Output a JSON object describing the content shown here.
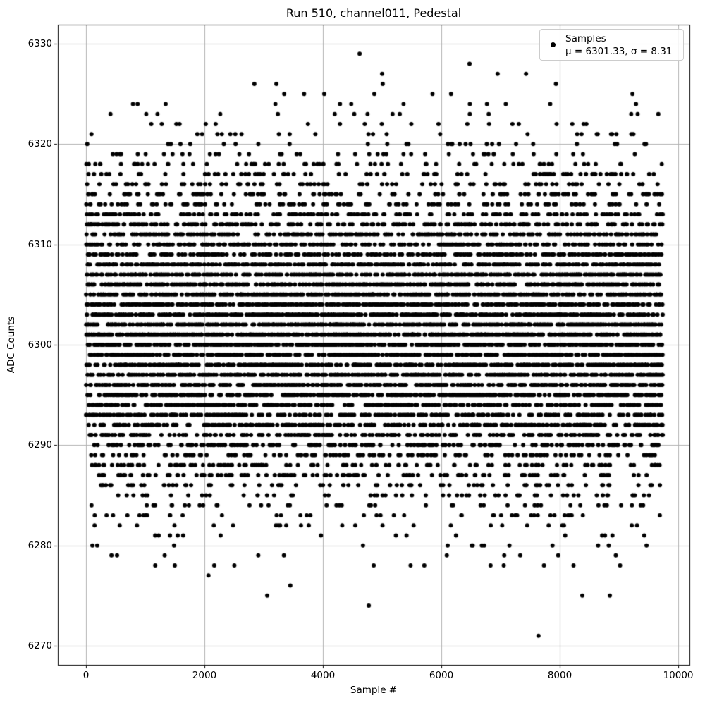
{
  "figure": {
    "title": "Run 510, channel011, Pedestal",
    "background_color": "#ffffff"
  },
  "axes": {
    "xlabel": "Sample #",
    "ylabel": "ADC Counts",
    "xticks": [
      0,
      2000,
      4000,
      6000,
      8000,
      10000
    ],
    "yticks": [
      6270,
      6280,
      6290,
      6300,
      6310,
      6320,
      6330
    ],
    "xlim": [
      -476,
      10190
    ],
    "ylim": [
      6268.1,
      6331.9
    ],
    "grid": true,
    "grid_color": "#b0b0b0",
    "spine_color": "#000000",
    "tick_color": "#000000"
  },
  "legend": {
    "label": "Samples",
    "stats": "μ = 6301.33, σ = 8.31",
    "position": "upper right",
    "marker_color": "#000000",
    "border_color": "#cccccc"
  },
  "chart_data": {
    "type": "scatter",
    "title": "Run 510, channel011, Pedestal",
    "xlabel": "Sample #",
    "ylabel": "ADC Counts",
    "xlim": [
      -476,
      10190
    ],
    "ylim": [
      6268.1,
      6331.9
    ],
    "xticks": [
      0,
      2000,
      4000,
      6000,
      8000,
      10000
    ],
    "yticks": [
      6270,
      6280,
      6290,
      6300,
      6310,
      6320,
      6330
    ],
    "grid": true,
    "legend_position": "upper right",
    "marker": {
      "color": "#000000",
      "radius": 3
    },
    "series": [
      {
        "name": "Samples",
        "n_points": 9740,
        "x_description": "sample index 0..9739, plotted left to right",
        "y_distribution": {
          "type": "gaussian_rounded_to_integer",
          "mu": 6301.33,
          "sigma": 8.31,
          "observed_min": 6271,
          "observed_max": 6329
        },
        "mu": 6301.33,
        "sigma": 8.31,
        "seed": 12345,
        "generated_value_range": [
          6277,
          6325
        ]
      }
    ],
    "outlier_points": [
      [
        4620,
        6329
      ],
      [
        6476,
        6328
      ],
      [
        5000,
        6327
      ],
      [
        6950,
        6327
      ],
      [
        7430,
        6327
      ],
      [
        2843,
        6326
      ],
      [
        3215,
        6326
      ],
      [
        5010,
        6326
      ],
      [
        7935,
        6326
      ],
      [
        3450,
        6276
      ],
      [
        3060,
        6275
      ],
      [
        8380,
        6275
      ],
      [
        8845,
        6275
      ],
      [
        4775,
        6274
      ],
      [
        7640,
        6271
      ]
    ]
  }
}
